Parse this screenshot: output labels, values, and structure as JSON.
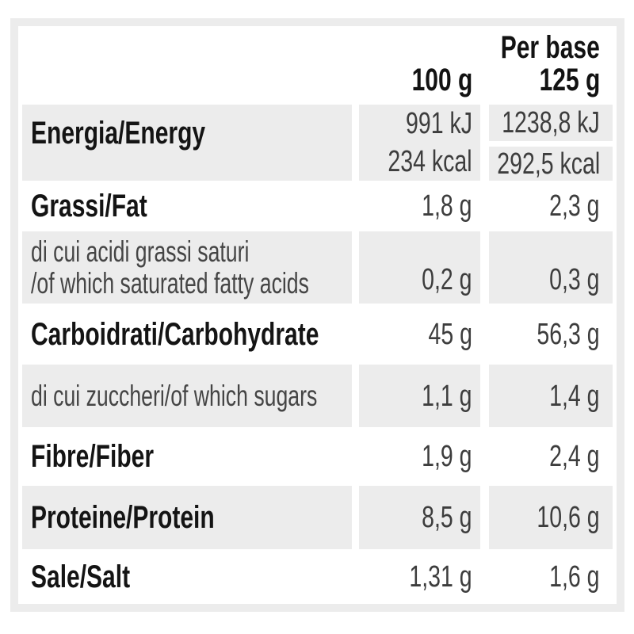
{
  "colors": {
    "frame": "#ececec",
    "shade": "#ececec",
    "label": "#141414",
    "sublabel": "#454545",
    "value": "#3d3d3d",
    "header": "#121212"
  },
  "header": {
    "col_100g": "100 g",
    "per_base_line1": "Per base",
    "per_base_line2": "125 g"
  },
  "rows": {
    "energy": {
      "label": "Energia/Energy",
      "kj_100g": "991 kJ",
      "kcal_100g": "234 kcal",
      "kj_base": "1238,8 kJ",
      "kcal_base": "292,5 kcal"
    },
    "fat": {
      "label": "Grassi/Fat",
      "v100": "1,8 g",
      "vbase": "2,3 g"
    },
    "satfat": {
      "label_line1": "di cui acidi grassi saturi",
      "label_line2": "/of which saturated fatty acids",
      "v100": "0,2 g",
      "vbase": "0,3 g"
    },
    "carb": {
      "label": "Carboidrati/Carbohydrate",
      "v100": "45 g",
      "vbase": "56,3 g"
    },
    "sugars": {
      "label": "di cui zuccheri/of which sugars",
      "v100": "1,1 g",
      "vbase": "1,4 g"
    },
    "fiber": {
      "label": "Fibre/Fiber",
      "v100": "1,9 g",
      "vbase": "2,4 g"
    },
    "protein": {
      "label": "Proteine/Protein",
      "v100": "8,5 g",
      "vbase": "10,6 g"
    },
    "salt": {
      "label": "Sale/Salt",
      "v100": "1,31 g",
      "vbase": "1,6 g"
    }
  }
}
